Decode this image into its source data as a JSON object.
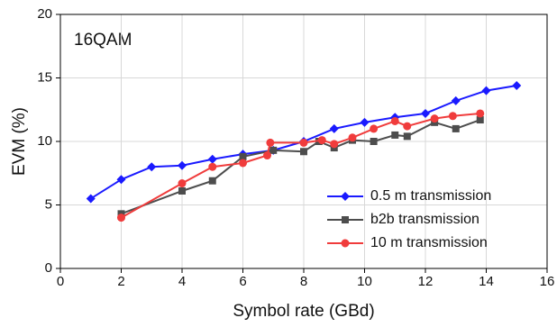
{
  "chart_data": {
    "type": "line",
    "annotation": "16QAM",
    "x_label": "Symbol rate (GBd)",
    "y_label": "EVM (%)",
    "xlim": [
      0,
      16
    ],
    "xticks": [
      0,
      2,
      4,
      6,
      8,
      10,
      12,
      14,
      16
    ],
    "ylim": [
      0,
      20
    ],
    "yticks": [
      0,
      5,
      10,
      15,
      20
    ],
    "grid": true,
    "legend": "lower right",
    "series": [
      {
        "name": "0.5 m transmission",
        "color": "#1a1aff",
        "marker": "diamond",
        "x": [
          1,
          2,
          3,
          4,
          5,
          6,
          7,
          8,
          9,
          10,
          11,
          12,
          13,
          14,
          15
        ],
        "values": [
          5.5,
          7.0,
          8.0,
          8.1,
          8.6,
          9.0,
          9.3,
          10.0,
          11.0,
          11.5,
          11.9,
          12.2,
          13.2,
          14.0,
          14.4
        ]
      },
      {
        "name": "b2b transmission",
        "color": "#4d4d4d",
        "marker": "square",
        "x": [
          2,
          4,
          5,
          6,
          7,
          8,
          8.5,
          9,
          9.6,
          10.3,
          11,
          11.4,
          12.3,
          13,
          13.8
        ],
        "values": [
          4.3,
          6.1,
          6.9,
          8.8,
          9.3,
          9.2,
          10.0,
          9.5,
          10.1,
          10.0,
          10.5,
          10.4,
          11.5,
          11.0,
          11.7
        ]
      },
      {
        "name": "10 m transmission",
        "color": "#f03c3c",
        "marker": "circle",
        "x": [
          2,
          4,
          5,
          6,
          6.8,
          6.9,
          8,
          8.6,
          9,
          9.6,
          10.3,
          11,
          11.4,
          12.3,
          12.9,
          13.8
        ],
        "values": [
          4.0,
          6.7,
          8.0,
          8.3,
          8.9,
          9.9,
          9.9,
          10.1,
          9.8,
          10.3,
          11.0,
          11.6,
          11.2,
          11.8,
          12.0,
          12.2
        ]
      }
    ]
  }
}
